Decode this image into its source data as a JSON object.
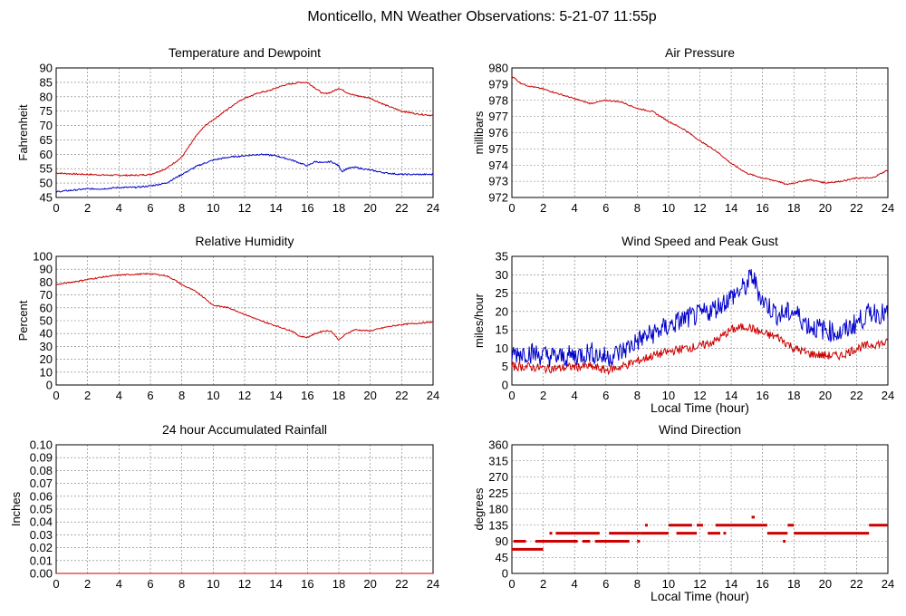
{
  "page_title": "Monticello, MN Weather Observations: 5-21-07 11:55p",
  "colors": {
    "red": "#cc0000",
    "blue": "#0000cc",
    "grid": "#777777",
    "frame": "#000000"
  },
  "chart_data": [
    {
      "id": "temp",
      "type": "line",
      "title": "Temperature and Dewpoint",
      "xlabel": "",
      "ylabel": "Fahrenheit",
      "xlim": [
        0,
        24
      ],
      "ylim": [
        45,
        90
      ],
      "xticks": [
        0,
        2,
        4,
        6,
        8,
        10,
        12,
        14,
        16,
        18,
        20,
        22,
        24
      ],
      "yticks": [
        45,
        50,
        55,
        60,
        65,
        70,
        75,
        80,
        85,
        90
      ],
      "series": [
        {
          "name": "Temperature",
          "color": "#cc0000",
          "jitter": 0.25,
          "x": [
            0,
            1,
            2,
            3,
            4,
            5,
            6,
            7,
            7.5,
            8,
            8.5,
            9,
            9.5,
            10,
            10.5,
            11,
            11.5,
            12,
            12.5,
            13,
            13.5,
            14,
            14.5,
            15,
            15.5,
            16,
            16.5,
            17,
            17.5,
            18,
            18.5,
            19,
            19.5,
            20,
            21,
            22,
            23,
            24
          ],
          "y": [
            53.5,
            53.2,
            53,
            52.8,
            52.7,
            52.7,
            53,
            55,
            57,
            59,
            63,
            67,
            70,
            72,
            74,
            76,
            78,
            79.5,
            80.5,
            81.5,
            82,
            83,
            84,
            84.5,
            85,
            85,
            83,
            81,
            81.5,
            83,
            81.5,
            80.5,
            80,
            79.5,
            77,
            75,
            74,
            73.5
          ]
        },
        {
          "name": "Dewpoint",
          "color": "#0000cc",
          "jitter": 0.25,
          "x": [
            0,
            1,
            2,
            3,
            4,
            5,
            6,
            7,
            8,
            9,
            10,
            11,
            12,
            13,
            14,
            15,
            15.5,
            16,
            16.5,
            17,
            17.5,
            18,
            18.2,
            18.5,
            19,
            20,
            21,
            22,
            23,
            24
          ],
          "y": [
            47,
            47.5,
            48,
            48,
            48.5,
            48.5,
            49,
            50,
            53,
            56,
            58,
            59,
            59.5,
            60,
            59.5,
            58,
            57,
            56,
            57.5,
            57,
            57.5,
            56,
            54,
            55,
            55.5,
            54.5,
            53.5,
            53,
            53,
            53
          ]
        }
      ]
    },
    {
      "id": "pressure",
      "type": "line",
      "title": "Air Pressure",
      "xlabel": "",
      "ylabel": "millibars",
      "xlim": [
        0,
        24
      ],
      "ylim": [
        972,
        980
      ],
      "xticks": [
        0,
        2,
        4,
        6,
        8,
        10,
        12,
        14,
        16,
        18,
        20,
        22,
        24
      ],
      "yticks": [
        972,
        973,
        974,
        975,
        976,
        977,
        978,
        979,
        980
      ],
      "series": [
        {
          "name": "Pressure",
          "color": "#cc0000",
          "jitter": 0.04,
          "x": [
            0,
            0.5,
            1,
            2,
            3,
            4,
            5,
            6,
            7,
            8,
            9,
            10,
            11,
            12,
            13,
            14,
            15,
            16,
            17,
            17.5,
            18,
            19,
            20,
            21,
            22,
            23,
            24
          ],
          "y": [
            979.5,
            979.1,
            978.9,
            978.7,
            978.4,
            978.1,
            977.8,
            978,
            977.9,
            977.5,
            977.3,
            976.7,
            976.2,
            975.5,
            974.9,
            974.1,
            973.5,
            973.2,
            973,
            972.8,
            972.9,
            973.1,
            972.9,
            973,
            973.2,
            973.2,
            973.7
          ]
        }
      ]
    },
    {
      "id": "humidity",
      "type": "line",
      "title": "Relative Humidity",
      "xlabel": "",
      "ylabel": "Percent",
      "xlim": [
        0,
        24
      ],
      "ylim": [
        0,
        100
      ],
      "xticks": [
        0,
        2,
        4,
        6,
        8,
        10,
        12,
        14,
        16,
        18,
        20,
        22,
        24
      ],
      "yticks": [
        0,
        10,
        20,
        30,
        40,
        50,
        60,
        70,
        80,
        90,
        100
      ],
      "series": [
        {
          "name": "Relative Humidity",
          "color": "#cc0000",
          "jitter": 0.5,
          "x": [
            0,
            1,
            2,
            3,
            4,
            5,
            6,
            7,
            7.5,
            8,
            9,
            10,
            11,
            12,
            13,
            14,
            15,
            15.5,
            16,
            16.5,
            17,
            17.5,
            17.8,
            18,
            18.5,
            19,
            20,
            21,
            22,
            23,
            24
          ],
          "y": [
            78,
            80,
            82,
            84,
            85.5,
            86,
            86.5,
            85,
            82,
            78,
            72,
            62,
            60,
            55,
            50,
            46,
            42,
            38,
            37,
            40,
            42,
            42,
            38,
            35,
            40,
            43,
            42,
            45,
            47,
            48,
            49
          ]
        }
      ]
    },
    {
      "id": "wind",
      "type": "line",
      "title": "Wind Speed and Peak Gust",
      "xlabel": "Local Time (hour)",
      "ylabel": "miles/hour",
      "xlim": [
        0,
        24
      ],
      "ylim": [
        0,
        35
      ],
      "xticks": [
        0,
        2,
        4,
        6,
        8,
        10,
        12,
        14,
        16,
        18,
        20,
        22,
        24
      ],
      "yticks": [
        0,
        5,
        10,
        15,
        20,
        25,
        30,
        35
      ],
      "series": [
        {
          "name": "Wind Speed",
          "color": "#cc0000",
          "jitter": 1.2,
          "x": [
            0,
            1,
            2,
            3,
            4,
            5,
            6,
            7,
            8,
            9,
            10,
            11,
            12,
            13,
            14,
            15,
            16,
            17,
            18,
            19,
            20,
            21,
            22,
            23,
            24
          ],
          "y": [
            5,
            5,
            4.5,
            4.5,
            5,
            5,
            4,
            5,
            6.5,
            8,
            9,
            10,
            10.5,
            12,
            15,
            16,
            14,
            13,
            10,
            8.5,
            8,
            8,
            10,
            11,
            11.5
          ]
        },
        {
          "name": "Peak Gust",
          "color": "#0000cc",
          "jitter": 3,
          "x": [
            0,
            1,
            2,
            3,
            4,
            5,
            6,
            7,
            8,
            9,
            10,
            11,
            12,
            13,
            14,
            15,
            15.3,
            16,
            17,
            18,
            19,
            20,
            21,
            22,
            23,
            24
          ],
          "y": [
            8.5,
            9,
            8,
            7.5,
            8,
            9,
            7.5,
            9,
            12,
            14,
            16,
            18,
            19,
            21,
            24,
            27,
            30,
            23,
            19,
            20,
            16,
            15,
            14,
            17,
            20,
            19
          ]
        }
      ]
    },
    {
      "id": "rain",
      "type": "line",
      "title": "24 hour Accumulated Rainfall",
      "xlabel": "",
      "ylabel": "Inches",
      "xlim": [
        0,
        24
      ],
      "ylim": [
        0,
        0.1
      ],
      "xticks": [
        0,
        2,
        4,
        6,
        8,
        10,
        12,
        14,
        16,
        18,
        20,
        22,
        24
      ],
      "yticks": [
        "0.00",
        "0.01",
        "0.02",
        "0.03",
        "0.04",
        "0.05",
        "0.06",
        "0.07",
        "0.08",
        "0.09",
        "0.10"
      ],
      "series": [
        {
          "name": "Rainfall",
          "color": "#cc0000",
          "jitter": 0,
          "x": [
            0,
            24
          ],
          "y": [
            0,
            0
          ]
        }
      ]
    },
    {
      "id": "direction",
      "type": "scatter",
      "title": "Wind Direction",
      "xlabel": "Local Time (hour)",
      "ylabel": "degrees",
      "xlim": [
        0,
        24
      ],
      "ylim": [
        0,
        360
      ],
      "xticks": [
        0,
        2,
        4,
        6,
        8,
        10,
        12,
        14,
        16,
        18,
        20,
        22,
        24
      ],
      "yticks": [
        0,
        45,
        90,
        135,
        180,
        225,
        270,
        315,
        360
      ],
      "segments": [
        [
          0,
          2,
          67.5
        ],
        [
          0.1,
          0.9,
          90
        ],
        [
          1.5,
          2.2,
          90
        ],
        [
          2.2,
          3.5,
          90
        ],
        [
          2.4,
          2.5,
          112.5
        ],
        [
          2.8,
          5.6,
          112.5
        ],
        [
          3.3,
          4.2,
          90
        ],
        [
          4.5,
          5,
          90
        ],
        [
          5.3,
          7.5,
          90
        ],
        [
          6.2,
          8.2,
          112.5
        ],
        [
          8,
          8.1,
          90
        ],
        [
          8.2,
          10,
          112.5
        ],
        [
          8.5,
          8.6,
          135
        ],
        [
          10,
          11.5,
          135
        ],
        [
          10.5,
          11.8,
          112.5
        ],
        [
          11.8,
          12.2,
          135
        ],
        [
          12.5,
          13.3,
          112.5
        ],
        [
          13,
          16.3,
          135
        ],
        [
          13.5,
          13.6,
          112.5
        ],
        [
          15.3,
          15.5,
          157.5
        ],
        [
          16.3,
          17.6,
          112.5
        ],
        [
          17.3,
          17.4,
          90
        ],
        [
          17.6,
          18,
          135
        ],
        [
          18,
          22.8,
          112.5
        ],
        [
          22.8,
          24,
          135
        ]
      ]
    }
  ]
}
